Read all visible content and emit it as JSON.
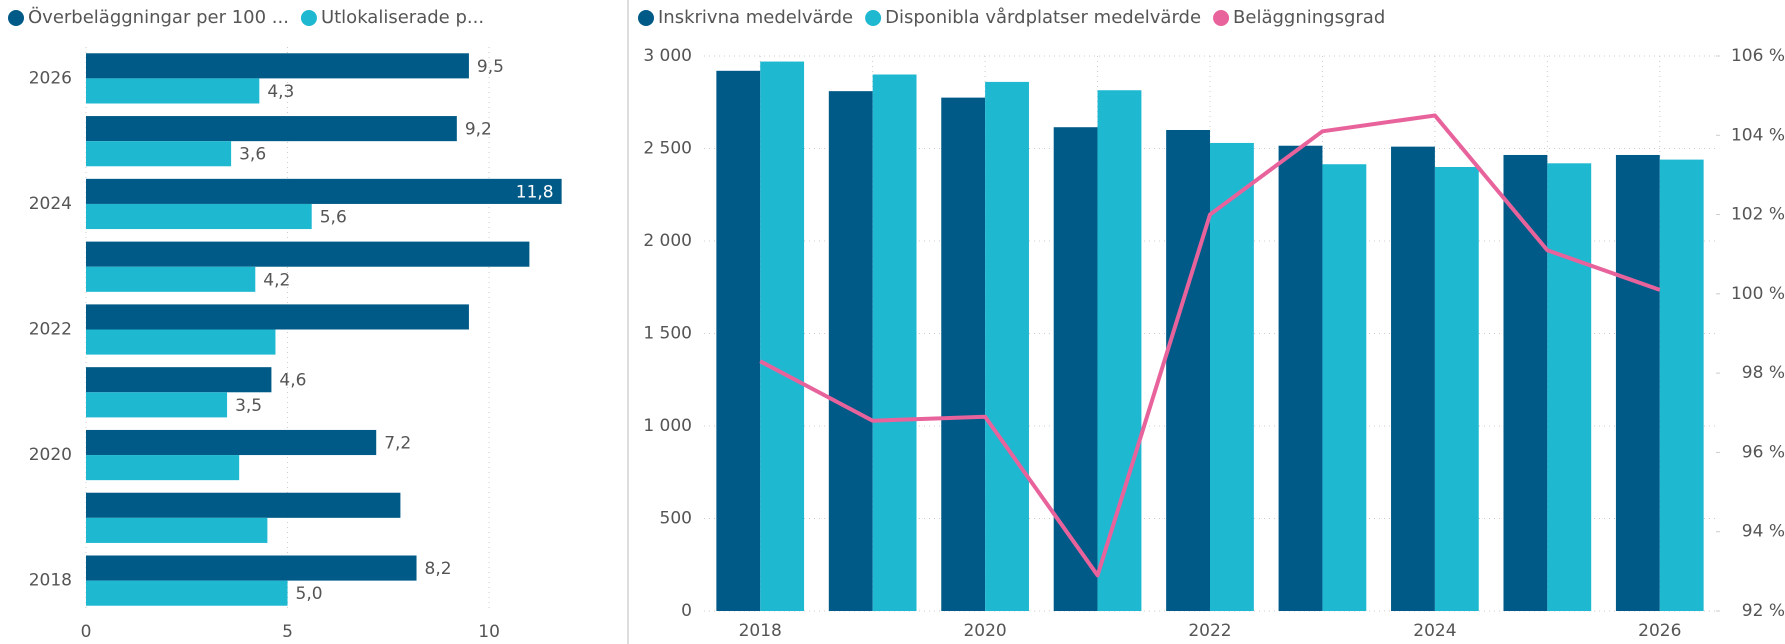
{
  "chart_data": [
    {
      "type": "hbar",
      "categories": [
        "2026",
        null,
        "2024",
        null,
        "2022",
        null,
        "2020",
        null,
        "2018"
      ],
      "series": [
        {
          "name": "Överbeläggningar per 100 ...",
          "color": "#005a87",
          "values": [
            9.5,
            9.2,
            11.8,
            11.0,
            9.5,
            4.6,
            7.2,
            7.8,
            8.2
          ],
          "value_labels": [
            "9,5",
            "9,2",
            "11,8",
            null,
            null,
            "4,6",
            "7,2",
            null,
            "8,2"
          ]
        },
        {
          "name": "Utlokaliserade p...",
          "color": "#1fb8d1",
          "values": [
            4.3,
            3.6,
            5.6,
            4.2,
            4.7,
            3.5,
            3.8,
            4.5,
            5.0
          ],
          "value_labels": [
            "4,3",
            "3,6",
            "5,6",
            "4,2",
            null,
            "3,5",
            null,
            null,
            "5,0"
          ]
        }
      ],
      "xlim": [
        0,
        13
      ],
      "xticks": [
        0,
        5,
        10
      ]
    },
    {
      "type": "combo",
      "categories": [
        "2018",
        null,
        "2020",
        null,
        "2022",
        null,
        "2024",
        null,
        "2026"
      ],
      "series": [
        {
          "name": "Inskrivna medelvärde",
          "color": "#005a87",
          "values": [
            2920,
            2810,
            2775,
            2615,
            2600,
            2515,
            2510,
            2465,
            2465
          ]
        },
        {
          "name": "Disponibla vårdplatser medelvärde",
          "color": "#1fb8d1",
          "values": [
            2970,
            2900,
            2860,
            2815,
            2530,
            2415,
            2400,
            2420,
            2440
          ]
        },
        {
          "name": "Beläggningsgrad",
          "color": "#e8639b",
          "axis": "y2",
          "values": [
            98.3,
            96.8,
            96.9,
            92.9,
            102.0,
            104.1,
            104.5,
            101.1,
            100.1
          ]
        }
      ],
      "ylim": [
        0,
        3000
      ],
      "yticks": [
        0,
        500,
        {
          "value": 1000,
          "label": "1 000"
        },
        {
          "value": 1500,
          "label": "1 500"
        },
        {
          "value": 2000,
          "label": "2 000"
        },
        {
          "value": 2500,
          "label": "2 500"
        },
        {
          "value": 3000,
          "label": "3 000"
        }
      ],
      "y2lim": [
        92,
        106
      ],
      "y2ticks": [
        {
          "value": 92,
          "label": "92 %"
        },
        {
          "value": 94,
          "label": "94 %"
        },
        {
          "value": 96,
          "label": "96 %"
        },
        {
          "value": 98,
          "label": "98 %"
        },
        {
          "value": 100,
          "label": "100 %"
        },
        {
          "value": 102,
          "label": "102 %"
        },
        {
          "value": 104,
          "label": "104 %"
        },
        {
          "value": 106,
          "label": "106 %"
        }
      ]
    }
  ]
}
